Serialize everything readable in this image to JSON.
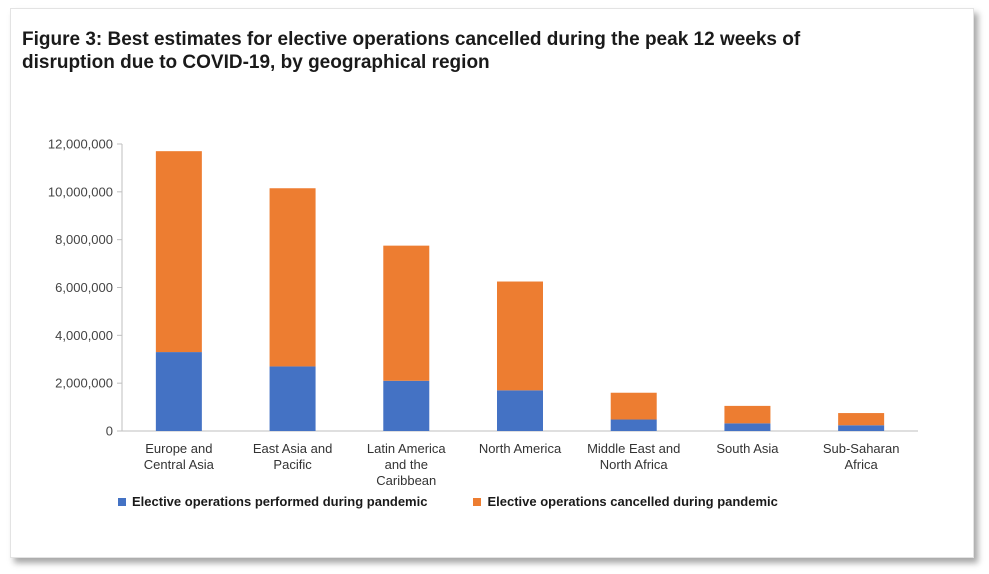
{
  "title_line1": "Figure 3: Best estimates for elective operations cancelled during the peak 12 weeks of",
  "title_line2": "disruption due to COVID-19, by geographical region",
  "colors": {
    "performed": "#4472C4",
    "cancelled": "#ED7D31",
    "axis": "#bfbfbf"
  },
  "chart_data": {
    "type": "bar",
    "stacked": true,
    "categories": [
      [
        "Europe and",
        "Central Asia"
      ],
      [
        "East Asia and",
        "Pacific"
      ],
      [
        "Latin America",
        "and the",
        "Caribbean"
      ],
      [
        "North America"
      ],
      [
        "Middle East and",
        "North Africa"
      ],
      [
        "South Asia"
      ],
      [
        "Sub-Saharan",
        "Africa"
      ]
    ],
    "series": [
      {
        "name": "Elective operations performed during pandemic",
        "values": [
          3300000,
          2700000,
          2100000,
          1700000,
          480000,
          320000,
          240000
        ]
      },
      {
        "name": "Elective operations cancelled during pandemic",
        "values": [
          8400000,
          7450000,
          5650000,
          4550000,
          1120000,
          730000,
          510000
        ]
      }
    ],
    "ylim": [
      0,
      12000000
    ],
    "yticks": [
      "0",
      "2,000,000",
      "4,000,000",
      "6,000,000",
      "8,000,000",
      "10,000,000",
      "12,000,000"
    ],
    "grid": false,
    "legend_position": "bottom"
  }
}
